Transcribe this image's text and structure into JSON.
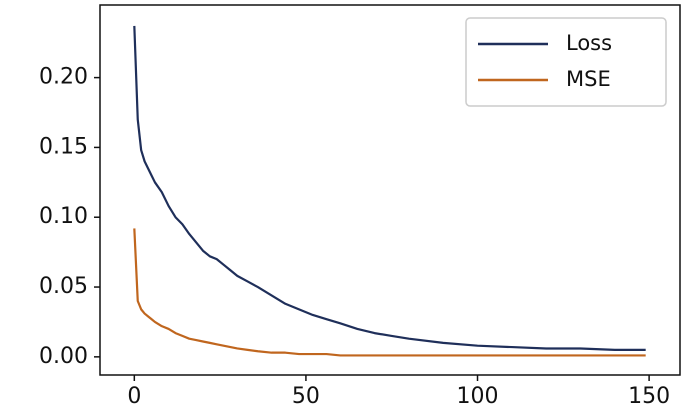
{
  "chart_data": {
    "type": "line",
    "x": [
      0,
      1,
      2,
      3,
      4,
      5,
      6,
      8,
      10,
      12,
      14,
      16,
      18,
      20,
      22,
      24,
      26,
      28,
      30,
      33,
      36,
      40,
      44,
      48,
      52,
      56,
      60,
      65,
      70,
      75,
      80,
      90,
      100,
      110,
      120,
      130,
      140,
      149
    ],
    "series": [
      {
        "name": "Loss",
        "color": "#1f2f5a",
        "values": [
          0.237,
          0.17,
          0.148,
          0.14,
          0.135,
          0.13,
          0.125,
          0.118,
          0.108,
          0.1,
          0.095,
          0.088,
          0.082,
          0.076,
          0.072,
          0.07,
          0.066,
          0.062,
          0.058,
          0.054,
          0.05,
          0.044,
          0.038,
          0.034,
          0.03,
          0.027,
          0.024,
          0.02,
          0.017,
          0.015,
          0.013,
          0.01,
          0.008,
          0.007,
          0.006,
          0.006,
          0.005,
          0.005
        ]
      },
      {
        "name": "MSE",
        "color": "#c0661e",
        "values": [
          0.092,
          0.04,
          0.034,
          0.031,
          0.029,
          0.027,
          0.025,
          0.022,
          0.02,
          0.017,
          0.015,
          0.013,
          0.012,
          0.011,
          0.01,
          0.009,
          0.008,
          0.007,
          0.006,
          0.005,
          0.004,
          0.003,
          0.003,
          0.002,
          0.002,
          0.002,
          0.001,
          0.001,
          0.001,
          0.001,
          0.001,
          0.001,
          0.001,
          0.001,
          0.001,
          0.001,
          0.001,
          0.001
        ]
      }
    ],
    "xlim": [
      -10,
      159
    ],
    "ylim": [
      -0.013,
      0.252
    ],
    "xticks": [
      0,
      50,
      100,
      150
    ],
    "yticks": [
      {
        "value": 0,
        "label": "0.00"
      },
      {
        "value": 0.05,
        "label": "0.05"
      },
      {
        "value": 0.1,
        "label": "0.10"
      },
      {
        "value": 0.15,
        "label": "0.15"
      },
      {
        "value": 0.2,
        "label": "0.20"
      }
    ],
    "legend": "upper right"
  }
}
